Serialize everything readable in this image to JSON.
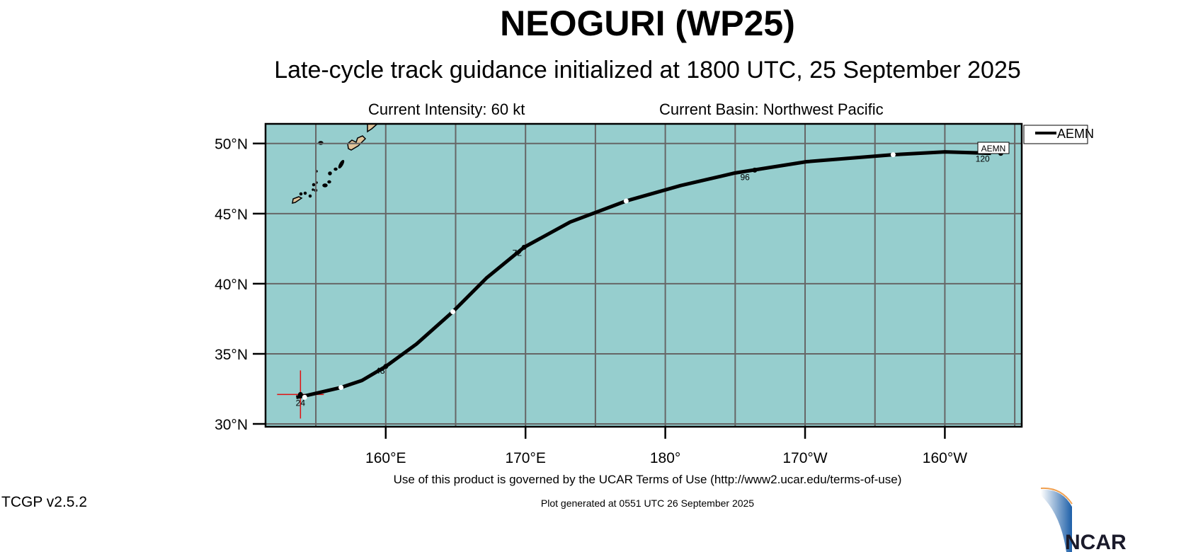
{
  "header": {
    "title": "NEOGURI (WP25)",
    "subtitle": "Late-cycle track guidance initialized at 1800 UTC, 25 September 2025",
    "intensity": "Current Intensity: 60 kt",
    "basin": "Current Basin: Northwest Pacific"
  },
  "map": {
    "lon_range": [
      151.4,
      205.5
    ],
    "lat_range": [
      29.8,
      51.4
    ],
    "lon_ticks": [
      {
        "v": 160,
        "label": "160°E"
      },
      {
        "v": 170,
        "label": "170°E"
      },
      {
        "v": 180,
        "label": "180°"
      },
      {
        "v": 190,
        "label": "170°W"
      },
      {
        "v": 200,
        "label": "160°W"
      }
    ],
    "lat_ticks": [
      {
        "v": 30,
        "label": "30°N"
      },
      {
        "v": 35,
        "label": "35°N"
      },
      {
        "v": 40,
        "label": "40°N"
      },
      {
        "v": 45,
        "label": "45°N"
      },
      {
        "v": 50,
        "label": "50°N"
      }
    ],
    "colors": {
      "ocean": "#96cece",
      "land": "#e0c49a",
      "grid": "#666666",
      "track": "#000000",
      "current_position": "#e01010"
    },
    "current_position": {
      "lon": 153.9,
      "lat": 32.1
    },
    "track": {
      "name": "AEMN",
      "points": [
        [
          153.6,
          31.9
        ],
        [
          154.2,
          32.0
        ],
        [
          156.8,
          32.6
        ],
        [
          158.3,
          33.1
        ],
        [
          160.0,
          34.1
        ],
        [
          162.2,
          35.7
        ],
        [
          164.8,
          38.0
        ],
        [
          167.2,
          40.4
        ],
        [
          169.9,
          42.6
        ],
        [
          173.2,
          44.4
        ],
        [
          177.2,
          45.9
        ],
        [
          181.1,
          47.0
        ],
        [
          185.0,
          47.9
        ],
        [
          190.1,
          48.7
        ],
        [
          196.3,
          49.2
        ],
        [
          200.0,
          49.4
        ],
        [
          203.3,
          49.3
        ]
      ],
      "hour_labels": [
        {
          "label": "24",
          "lon": 153.9,
          "lat": 31.6
        },
        {
          "label": "48",
          "lon": 159.6,
          "lat": 33.9
        },
        {
          "label": "72",
          "lon": 169.4,
          "lat": 42.3
        },
        {
          "label": "96",
          "lon": 185.7,
          "lat": 47.7
        },
        {
          "label": "120",
          "lon": 202.7,
          "lat": 49.0
        }
      ],
      "major_points": [
        [
          153.9,
          32.1
        ],
        [
          160.0,
          34.1
        ],
        [
          169.9,
          42.6
        ],
        [
          186.4,
          48.1
        ],
        [
          204.0,
          49.3
        ]
      ],
      "minor_points": [
        [
          154.2,
          31.9
        ],
        [
          156.8,
          32.6
        ],
        [
          164.8,
          38.0
        ],
        [
          177.2,
          45.9
        ],
        [
          196.3,
          49.2
        ]
      ]
    },
    "legend": {
      "entries": [
        "AEMN"
      ],
      "placement": "top-right outside"
    }
  },
  "footer": {
    "terms": "Use of this product is governed by the UCAR Terms of Use (http://www2.ucar.edu/terms-of-use)",
    "generated": "Plot generated at 0551 UTC   26 September 2025",
    "version": "TCGP v2.5.2",
    "logo": "NCAR"
  }
}
